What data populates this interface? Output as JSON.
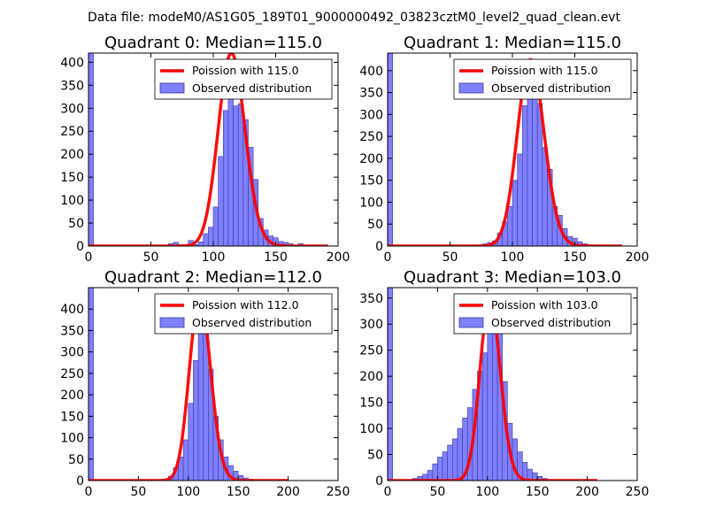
{
  "suptitle": "Data file: modeM0/AS1G05_189T01_9000000492_03823cztM0_level2_quad_clean.evt",
  "colors": {
    "bars": "#7f7fff",
    "bar_edge": "#3b3b9a",
    "fit_line": "#ff0000"
  },
  "chart_data": [
    {
      "type": "bar",
      "title": "Quadrant 0: Median=115.0",
      "median": 115.0,
      "xlim": [
        0,
        200
      ],
      "ylim": [
        0,
        420
      ],
      "xticks": [
        0,
        50,
        100,
        150,
        200
      ],
      "yticks": [
        0,
        50,
        100,
        150,
        200,
        250,
        300,
        350,
        400
      ],
      "legend": {
        "position": "top-right",
        "fit_label": "Poission with 115.0",
        "hist_label": "Observed distribution"
      },
      "bin_width": 4,
      "bins": [
        [
          0,
          420
        ],
        [
          64,
          5
        ],
        [
          68,
          8
        ],
        [
          72,
          3
        ],
        [
          76,
          1
        ],
        [
          80,
          12
        ],
        [
          84,
          3
        ],
        [
          88,
          9
        ],
        [
          92,
          27
        ],
        [
          96,
          41
        ],
        [
          100,
          85
        ],
        [
          104,
          195
        ],
        [
          108,
          295
        ],
        [
          112,
          320
        ],
        [
          116,
          305
        ],
        [
          120,
          310
        ],
        [
          124,
          275
        ],
        [
          128,
          215
        ],
        [
          132,
          145
        ],
        [
          136,
          60
        ],
        [
          140,
          35
        ],
        [
          144,
          22
        ],
        [
          148,
          18
        ],
        [
          152,
          10
        ],
        [
          156,
          8
        ],
        [
          160,
          5
        ],
        [
          168,
          5
        ],
        [
          172,
          2
        ],
        [
          176,
          1
        ]
      ],
      "fit": {
        "mean": 115.0,
        "peak": 420,
        "x_range": [
          0,
          192
        ]
      }
    },
    {
      "type": "bar",
      "title": "Quadrant 1: Median=115.0",
      "median": 115.0,
      "xlim": [
        0,
        200
      ],
      "ylim": [
        0,
        440
      ],
      "xticks": [
        0,
        50,
        100,
        150,
        200
      ],
      "yticks": [
        0,
        50,
        100,
        150,
        200,
        250,
        300,
        350,
        400
      ],
      "legend": {
        "position": "top-right",
        "fit_label": "Poission with 115.0",
        "hist_label": "Observed distribution"
      },
      "bin_width": 4,
      "bins": [
        [
          0,
          440
        ],
        [
          72,
          2
        ],
        [
          76,
          5
        ],
        [
          80,
          8
        ],
        [
          84,
          12
        ],
        [
          88,
          30
        ],
        [
          92,
          55
        ],
        [
          96,
          90
        ],
        [
          100,
          150
        ],
        [
          104,
          210
        ],
        [
          108,
          320
        ],
        [
          112,
          355
        ],
        [
          116,
          400
        ],
        [
          120,
          325
        ],
        [
          124,
          225
        ],
        [
          128,
          175
        ],
        [
          132,
          90
        ],
        [
          136,
          70
        ],
        [
          140,
          40
        ],
        [
          144,
          22
        ],
        [
          148,
          18
        ],
        [
          152,
          10
        ],
        [
          156,
          5
        ],
        [
          160,
          3
        ],
        [
          164,
          2
        ],
        [
          168,
          1
        ]
      ],
      "fit": {
        "mean": 115.0,
        "peak": 425,
        "x_range": [
          0,
          188
        ]
      }
    },
    {
      "type": "bar",
      "title": "Quadrant 2: Median=112.0",
      "median": 112.0,
      "xlim": [
        0,
        250
      ],
      "ylim": [
        0,
        450
      ],
      "xticks": [
        0,
        50,
        100,
        150,
        200,
        250
      ],
      "yticks": [
        0,
        50,
        100,
        150,
        200,
        250,
        300,
        350,
        400
      ],
      "legend": {
        "position": "top-right",
        "fit_label": "Poission with 112.0",
        "hist_label": "Observed distribution"
      },
      "bin_width": 5,
      "bins": [
        [
          0,
          450
        ],
        [
          80,
          10
        ],
        [
          85,
          30
        ],
        [
          90,
          55
        ],
        [
          95,
          95
        ],
        [
          100,
          180
        ],
        [
          105,
          280
        ],
        [
          110,
          380
        ],
        [
          115,
          360
        ],
        [
          120,
          260
        ],
        [
          125,
          150
        ],
        [
          130,
          95
        ],
        [
          135,
          55
        ],
        [
          140,
          35
        ],
        [
          145,
          22
        ],
        [
          150,
          12
        ],
        [
          155,
          6
        ],
        [
          160,
          3
        ],
        [
          165,
          2
        ]
      ],
      "fit": {
        "mean": 112.0,
        "peak": 430,
        "x_range": [
          0,
          200
        ]
      }
    },
    {
      "type": "bar",
      "title": "Quadrant 3: Median=103.0",
      "median": 103.0,
      "xlim": [
        0,
        250
      ],
      "ylim": [
        0,
        370
      ],
      "xticks": [
        0,
        50,
        100,
        150,
        200,
        250
      ],
      "yticks": [
        0,
        50,
        100,
        150,
        200,
        250,
        300,
        350
      ],
      "legend": {
        "position": "top-right",
        "fit_label": "Poission with 103.0",
        "hist_label": "Observed distribution"
      },
      "bin_width": 5,
      "bins": [
        [
          0,
          370
        ],
        [
          25,
          4
        ],
        [
          30,
          8
        ],
        [
          35,
          12
        ],
        [
          40,
          20
        ],
        [
          45,
          32
        ],
        [
          50,
          45
        ],
        [
          55,
          55
        ],
        [
          60,
          68
        ],
        [
          65,
          80
        ],
        [
          70,
          100
        ],
        [
          75,
          120
        ],
        [
          80,
          140
        ],
        [
          85,
          175
        ],
        [
          90,
          210
        ],
        [
          95,
          245
        ],
        [
          100,
          290
        ],
        [
          105,
          325
        ],
        [
          110,
          290
        ],
        [
          115,
          190
        ],
        [
          120,
          110
        ],
        [
          125,
          80
        ],
        [
          130,
          55
        ],
        [
          135,
          35
        ],
        [
          140,
          22
        ],
        [
          145,
          15
        ],
        [
          150,
          8
        ],
        [
          155,
          4
        ]
      ],
      "fit": {
        "mean": 103.0,
        "peak": 350,
        "x_range": [
          0,
          210
        ]
      }
    }
  ]
}
